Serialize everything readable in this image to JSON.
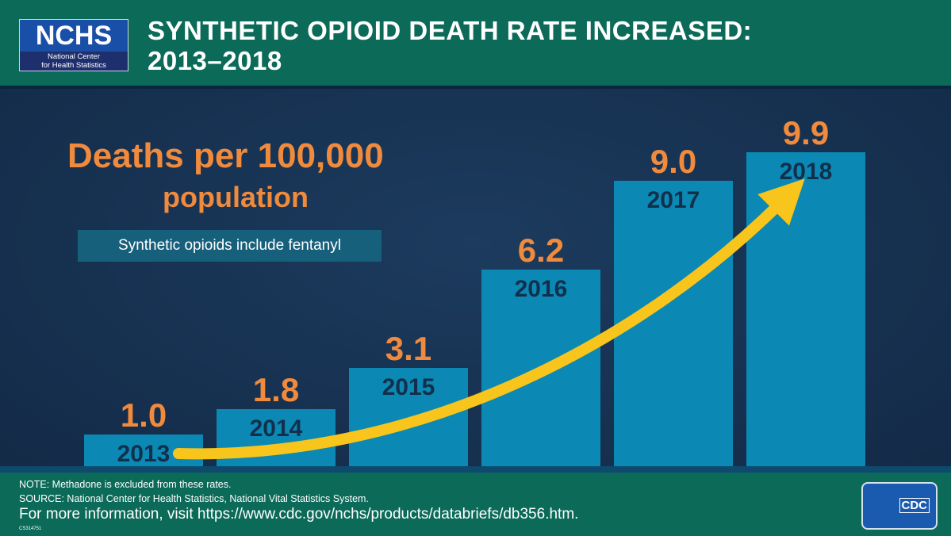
{
  "header": {
    "logo_main": "NCHS",
    "logo_sub1": "National Center",
    "logo_sub2": "for Health Statistics",
    "title_line1": "SYNTHETIC OPIOID DEATH RATE INCREASED:",
    "title_line2": "2013–2018"
  },
  "chart_data": {
    "type": "bar",
    "title": "SYNTHETIC OPIOID DEATH RATE INCREASED: 2013–2018",
    "ylabel": "Deaths per 100,000 population",
    "categories": [
      "2013",
      "2014",
      "2015",
      "2016",
      "2017",
      "2018"
    ],
    "values": [
      1.0,
      1.8,
      3.1,
      6.2,
      9.0,
      9.9
    ],
    "value_labels": [
      "1.0",
      "1.8",
      "3.1",
      "6.2",
      "9.0",
      "9.9"
    ],
    "ylim": [
      0,
      10
    ],
    "grid": false,
    "annotation": "Synthetic opioids include fentanyl",
    "colors": {
      "bar": "#0b88b4",
      "value_label": "#f08a3c",
      "year_label": "#12304c",
      "arrow": "#f7c51c"
    }
  },
  "chart": {
    "ylabel_line1": "Deaths per 100,000",
    "ylabel_line2": "population",
    "note": "Synthetic opioids include fentanyl"
  },
  "footer": {
    "note": "NOTE: Methadone is excluded from these rates.",
    "source": "SOURCE: National Center for Health Statistics, National Vital Statistics System.",
    "more": "For more information, visit https://www.cdc.gov/nchs/products/databriefs/db356.htm.",
    "code": "CS314751",
    "cdc_logo": "CDC"
  }
}
